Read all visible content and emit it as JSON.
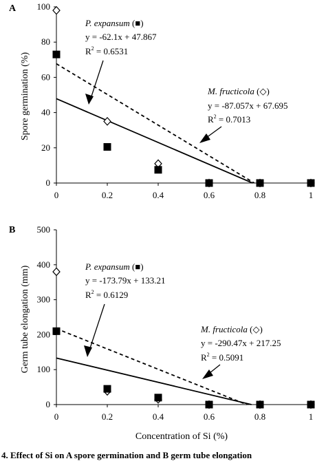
{
  "chart_data": [
    {
      "panel_label": "A",
      "type": "scatter",
      "ylabel": "Spore germination (%)",
      "ylim": [
        0,
        100
      ],
      "yticks": [
        "0",
        "20",
        "40",
        "60",
        "80",
        "100"
      ],
      "xlim": [
        0,
        1
      ],
      "xticks": [
        "0",
        "0.2",
        "0.4",
        "0.6",
        "0.8",
        "1"
      ],
      "series": [
        {
          "name": "P. expansum",
          "marker": "filled-square",
          "points": [
            [
              0,
              73
            ],
            [
              0.2,
              20.5
            ],
            [
              0.4,
              7.5
            ],
            [
              0.6,
              0
            ],
            [
              0.8,
              0
            ],
            [
              1,
              0
            ]
          ],
          "fit": {
            "slope": -62.1,
            "intercept": 47.867,
            "style": "solid"
          },
          "annotation": {
            "name": "P. expansum",
            "symbol": "(■)",
            "equation": "y = -62.1x + 47.867",
            "r2_prefix": "R",
            "r2_exp": "2",
            "r2_value": " = 0.6531"
          }
        },
        {
          "name": "M. fructicola",
          "marker": "open-diamond",
          "points": [
            [
              0,
              98
            ],
            [
              0.2,
              35
            ],
            [
              0.4,
              11
            ],
            [
              0.6,
              0
            ],
            [
              0.8,
              0
            ],
            [
              1,
              0
            ]
          ],
          "fit": {
            "slope": -87.057,
            "intercept": 67.695,
            "style": "dashed"
          },
          "annotation": {
            "name": "M. fructicola",
            "symbol": "(◇)",
            "equation": "y = -87.057x + 67.695",
            "r2_prefix": "R",
            "r2_exp": "2",
            "r2_value": " = 0.7013"
          }
        }
      ]
    },
    {
      "panel_label": "B",
      "type": "scatter",
      "ylabel": "Germ tube elongation (mm)",
      "xlabel": "Concentration of Si (%)",
      "ylim": [
        0,
        500
      ],
      "yticks": [
        "0",
        "100",
        "200",
        "300",
        "400",
        "500"
      ],
      "xlim": [
        0,
        1
      ],
      "xticks": [
        "0",
        "0.2",
        "0.4",
        "0.6",
        "0.8",
        "1"
      ],
      "series": [
        {
          "name": "P. expansum",
          "marker": "filled-square",
          "points": [
            [
              0,
              210
            ],
            [
              0.2,
              45
            ],
            [
              0.4,
              20
            ],
            [
              0.6,
              0
            ],
            [
              0.8,
              0
            ],
            [
              1,
              0
            ]
          ],
          "fit": {
            "slope": -173.79,
            "intercept": 133.21,
            "style": "solid"
          },
          "annotation": {
            "name": "P. expansum",
            "symbol": "(■)",
            "equation": "y = -173.79x + 133.21",
            "r2_prefix": "R",
            "r2_exp": "2",
            "r2_value": " = 0.6129"
          }
        },
        {
          "name": "M. fructicola",
          "marker": "open-diamond",
          "points": [
            [
              0,
              380
            ],
            [
              0.2,
              38
            ],
            [
              0.4,
              15
            ],
            [
              0.6,
              0
            ],
            [
              0.8,
              0
            ],
            [
              1,
              0
            ]
          ],
          "fit": {
            "slope": -290.47,
            "intercept": 217.25,
            "style": "dashed"
          },
          "annotation": {
            "name": "M. fructicola",
            "symbol": "(◇)",
            "equation": "y = -290.47x + 217.25",
            "r2_prefix": "R",
            "r2_exp": "2",
            "r2_value": " = 0.5091"
          }
        }
      ]
    }
  ],
  "caption": "4. Effect of Si on A spore germination and B germ tube elongation"
}
